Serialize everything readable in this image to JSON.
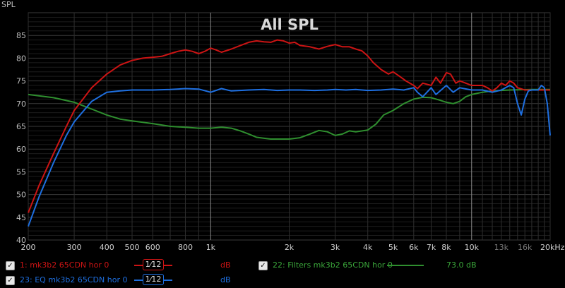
{
  "header": {
    "yaxis_label": "SPL"
  },
  "chart_data": {
    "type": "line",
    "title": "All SPL",
    "ylabel": "SPL",
    "xscale": "log",
    "xlim": [
      200,
      20000
    ],
    "ylim": [
      40,
      90
    ],
    "grid": true,
    "y_ticks": [
      40,
      45,
      50,
      55,
      60,
      65,
      70,
      75,
      80,
      85
    ],
    "x_ticks": [
      {
        "v": 200,
        "label": "200"
      },
      {
        "v": 300,
        "label": "300"
      },
      {
        "v": 400,
        "label": "400"
      },
      {
        "v": 500,
        "label": "500"
      },
      {
        "v": 600,
        "label": "600"
      },
      {
        "v": 800,
        "label": "800"
      },
      {
        "v": 1000,
        "label": "1k"
      },
      {
        "v": 2000,
        "label": "2k"
      },
      {
        "v": 3000,
        "label": "3k"
      },
      {
        "v": 4000,
        "label": "4k"
      },
      {
        "v": 5000,
        "label": "5k"
      },
      {
        "v": 6000,
        "label": "6k"
      },
      {
        "v": 7000,
        "label": "7k"
      },
      {
        "v": 8000,
        "label": "8k"
      },
      {
        "v": 10000,
        "label": "10k"
      },
      {
        "v": 13000,
        "label": "13k"
      },
      {
        "v": 16000,
        "label": "16k"
      },
      {
        "v": 20000,
        "label": "20kHz"
      }
    ],
    "series": [
      {
        "name": "1: mk3b2 65CDN hor 0",
        "color": "#cc1414",
        "points": [
          [
            200,
            46
          ],
          [
            220,
            52
          ],
          [
            250,
            59
          ],
          [
            280,
            65
          ],
          [
            300,
            68.5
          ],
          [
            350,
            73.5
          ],
          [
            400,
            76.5
          ],
          [
            450,
            78.5
          ],
          [
            500,
            79.5
          ],
          [
            550,
            80
          ],
          [
            600,
            80.2
          ],
          [
            650,
            80.4
          ],
          [
            700,
            81
          ],
          [
            750,
            81.5
          ],
          [
            800,
            81.8
          ],
          [
            850,
            81.5
          ],
          [
            900,
            81
          ],
          [
            950,
            81.5
          ],
          [
            1000,
            82.2
          ],
          [
            1050,
            81.8
          ],
          [
            1100,
            81.3
          ],
          [
            1200,
            82
          ],
          [
            1300,
            82.8
          ],
          [
            1400,
            83.5
          ],
          [
            1500,
            83.8
          ],
          [
            1600,
            83.6
          ],
          [
            1700,
            83.5
          ],
          [
            1800,
            84
          ],
          [
            1900,
            83.8
          ],
          [
            2000,
            83.3
          ],
          [
            2100,
            83.5
          ],
          [
            2200,
            82.8
          ],
          [
            2400,
            82.5
          ],
          [
            2600,
            82
          ],
          [
            2800,
            82.6
          ],
          [
            3000,
            83
          ],
          [
            3200,
            82.5
          ],
          [
            3400,
            82.5
          ],
          [
            3600,
            82
          ],
          [
            3800,
            81.6
          ],
          [
            4000,
            80.5
          ],
          [
            4200,
            79
          ],
          [
            4500,
            77.5
          ],
          [
            4800,
            76.5
          ],
          [
            5000,
            77
          ],
          [
            5300,
            76
          ],
          [
            5600,
            75
          ],
          [
            6000,
            74
          ],
          [
            6200,
            73.3
          ],
          [
            6500,
            74.5
          ],
          [
            7000,
            74
          ],
          [
            7300,
            75.8
          ],
          [
            7600,
            74.5
          ],
          [
            8000,
            76.8
          ],
          [
            8300,
            76.5
          ],
          [
            8700,
            74.5
          ],
          [
            9000,
            75
          ],
          [
            9500,
            74.5
          ],
          [
            10000,
            74
          ],
          [
            11000,
            74
          ],
          [
            11500,
            73.5
          ],
          [
            12000,
            72.8
          ],
          [
            12500,
            73.5
          ],
          [
            13000,
            74.5
          ],
          [
            13500,
            74
          ],
          [
            14000,
            75
          ],
          [
            14500,
            74.5
          ],
          [
            15000,
            73.5
          ],
          [
            16000,
            73
          ],
          [
            17000,
            73
          ],
          [
            18000,
            73
          ],
          [
            19000,
            73
          ],
          [
            20000,
            73
          ]
        ]
      },
      {
        "name": "23: EQ mk3b2 65CDN hor 0",
        "color": "#1e6fe0",
        "points": [
          [
            200,
            43
          ],
          [
            220,
            49.5
          ],
          [
            250,
            57
          ],
          [
            280,
            63
          ],
          [
            300,
            66
          ],
          [
            350,
            70.5
          ],
          [
            400,
            72.5
          ],
          [
            450,
            72.8
          ],
          [
            500,
            73
          ],
          [
            600,
            73
          ],
          [
            700,
            73.1
          ],
          [
            800,
            73.3
          ],
          [
            900,
            73.2
          ],
          [
            1000,
            72.5
          ],
          [
            1100,
            73.3
          ],
          [
            1200,
            72.8
          ],
          [
            1400,
            73
          ],
          [
            1600,
            73.1
          ],
          [
            1800,
            72.9
          ],
          [
            2000,
            73
          ],
          [
            2200,
            73
          ],
          [
            2500,
            72.9
          ],
          [
            2800,
            73
          ],
          [
            3000,
            73.1
          ],
          [
            3300,
            73
          ],
          [
            3600,
            73.1
          ],
          [
            4000,
            72.9
          ],
          [
            4500,
            73
          ],
          [
            5000,
            73.2
          ],
          [
            5500,
            73
          ],
          [
            6000,
            73.5
          ],
          [
            6200,
            72.5
          ],
          [
            6500,
            71.5
          ],
          [
            7000,
            73.5
          ],
          [
            7300,
            72
          ],
          [
            8000,
            74
          ],
          [
            8500,
            72.5
          ],
          [
            9000,
            73.5
          ],
          [
            10000,
            73
          ],
          [
            11000,
            73
          ],
          [
            12000,
            72.5
          ],
          [
            13000,
            73
          ],
          [
            14000,
            74
          ],
          [
            14500,
            73.5
          ],
          [
            15000,
            70
          ],
          [
            15500,
            67.5
          ],
          [
            16000,
            71
          ],
          [
            16500,
            72.8
          ],
          [
            17000,
            73
          ],
          [
            18000,
            73
          ],
          [
            18500,
            74
          ],
          [
            19000,
            73.5
          ],
          [
            19500,
            70
          ],
          [
            20000,
            63
          ]
        ]
      },
      {
        "name": "22: Filters mk3b2 65CDN hor 0",
        "color": "#2f8f2f",
        "points": [
          [
            200,
            72
          ],
          [
            250,
            71.3
          ],
          [
            300,
            70.3
          ],
          [
            350,
            68.8
          ],
          [
            400,
            67.5
          ],
          [
            450,
            66.6
          ],
          [
            500,
            66.2
          ],
          [
            600,
            65.6
          ],
          [
            700,
            65
          ],
          [
            800,
            64.8
          ],
          [
            900,
            64.6
          ],
          [
            1000,
            64.6
          ],
          [
            1100,
            64.8
          ],
          [
            1200,
            64.6
          ],
          [
            1300,
            64
          ],
          [
            1400,
            63.3
          ],
          [
            1500,
            62.6
          ],
          [
            1700,
            62.2
          ],
          [
            2000,
            62.2
          ],
          [
            2200,
            62.5
          ],
          [
            2400,
            63.3
          ],
          [
            2600,
            64.1
          ],
          [
            2800,
            63.8
          ],
          [
            3000,
            63
          ],
          [
            3200,
            63.3
          ],
          [
            3400,
            64
          ],
          [
            3600,
            63.8
          ],
          [
            4000,
            64.2
          ],
          [
            4300,
            65.5
          ],
          [
            4600,
            67.5
          ],
          [
            5000,
            68.5
          ],
          [
            5500,
            70
          ],
          [
            6000,
            71
          ],
          [
            6500,
            71.4
          ],
          [
            7000,
            71.3
          ],
          [
            7500,
            70.8
          ],
          [
            8000,
            70.3
          ],
          [
            8500,
            70
          ],
          [
            9000,
            70.5
          ],
          [
            9500,
            71.5
          ],
          [
            10000,
            72
          ],
          [
            11000,
            72.5
          ],
          [
            12000,
            72.8
          ],
          [
            14000,
            73
          ],
          [
            17000,
            73.1
          ],
          [
            20000,
            73.1
          ]
        ]
      }
    ]
  },
  "legend": {
    "rows": [
      {
        "name": "1: mk3b2 65CDN hor 0",
        "smoothing": "1⁄12",
        "unit": "dB",
        "color": "#cc1414"
      },
      {
        "name": "23: EQ mk3b2 65CDN hor 0",
        "smoothing": "1⁄12",
        "unit": "dB",
        "color": "#1e6fe0"
      },
      {
        "name": "22: Filters mk3b2 65CDN hor 0",
        "unit": "73.0 dB",
        "color": "#2f8f2f"
      }
    ],
    "check": "✓"
  }
}
